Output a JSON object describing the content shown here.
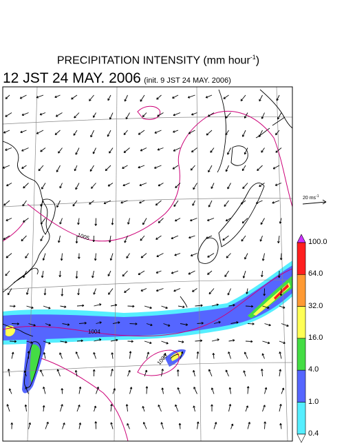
{
  "title": {
    "line1_prefix": "PRECIPITATION INTENSITY (mm hour",
    "line1_sup": "-1",
    "line1_suffix": ")",
    "line2_main": "12 JST 24 MAY. 2006",
    "line2_init": "(init. 9 JST 24 MAY. 2006)"
  },
  "wind_reference": {
    "label_prefix": "20 ms",
    "label_sup": "-1"
  },
  "legend": {
    "labels": [
      "100.0",
      "64.0",
      "32.0",
      "16.0",
      "4.0",
      "1.0",
      "0.4"
    ],
    "colors": [
      "#cc33ff",
      "#ff1f1f",
      "#ff9a33",
      "#ffff55",
      "#44dd44",
      "#5566ff",
      "#55eeff",
      "#ffffff"
    ]
  },
  "isobars": [
    "1005",
    "1004",
    "1003"
  ],
  "colors": {
    "isobar": "#cc0077",
    "coast": "#000000",
    "grid": "#888888"
  }
}
